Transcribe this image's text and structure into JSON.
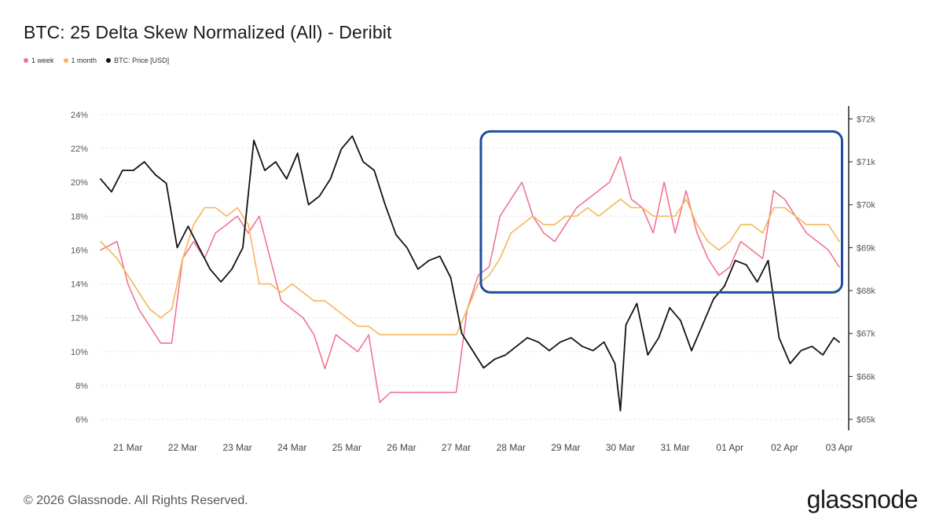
{
  "title": "BTC: 25 Delta Skew Normalized (All) - Deribit",
  "legend": [
    {
      "label": "1 week",
      "color": "#f0758f"
    },
    {
      "label": "1 month",
      "color": "#f5b65a"
    },
    {
      "label": "BTC: Price [USD]",
      "color": "#111111"
    }
  ],
  "footer": "© 2026 Glassnode. All Rights Reserved.",
  "brand": "glassnode",
  "highlight_color": "#1f4e9a",
  "chart_data": {
    "type": "line",
    "x_ticks": [
      "21 Mar",
      "22 Mar",
      "23 Mar",
      "24 Mar",
      "25 Mar",
      "26 Mar",
      "27 Mar",
      "28 Mar",
      "29 Mar",
      "30 Mar",
      "31 Mar",
      "01 Apr",
      "02 Apr",
      "03 Apr"
    ],
    "y_left_ticks": [
      "6%",
      "8%",
      "10%",
      "12%",
      "14%",
      "16%",
      "18%",
      "20%",
      "22%",
      "24%"
    ],
    "y_left_range": [
      5.5,
      24.5
    ],
    "y_right_ticks": [
      "$65k",
      "$66k",
      "$67k",
      "$68k",
      "$69k",
      "$70k",
      "$71k",
      "$72k"
    ],
    "y_right_range": [
      64.8,
      72.3
    ],
    "x_range": [
      20.5,
      34.1
    ],
    "grid": "horizontal dashed",
    "legend_position": "top-left",
    "annotation": "highlight box from 27 Mar to 03 Apr",
    "highlight_range": {
      "x": [
        27.45,
        34.05
      ],
      "y_left": [
        13.5,
        23.0
      ]
    },
    "series": [
      {
        "name": "1 week",
        "color": "#f0758f",
        "x": [
          20.5,
          20.8,
          21.0,
          21.2,
          21.4,
          21.6,
          21.8,
          22.0,
          22.2,
          22.4,
          22.6,
          22.8,
          23.0,
          23.2,
          23.4,
          23.6,
          23.8,
          24.0,
          24.2,
          24.4,
          24.6,
          24.8,
          25.0,
          25.2,
          25.4,
          25.6,
          25.8,
          26.0,
          26.2,
          26.4,
          26.6,
          26.8,
          27.0,
          27.2,
          27.4,
          27.6,
          27.8,
          28.0,
          28.2,
          28.4,
          28.6,
          28.8,
          29.0,
          29.2,
          29.4,
          29.6,
          29.8,
          30.0,
          30.2,
          30.4,
          30.6,
          30.8,
          31.0,
          31.2,
          31.4,
          31.6,
          31.8,
          32.0,
          32.2,
          32.4,
          32.6,
          32.8,
          33.0,
          33.2,
          33.4,
          33.6,
          33.8,
          34.0
        ],
        "values": [
          16.0,
          16.5,
          14.0,
          12.5,
          11.5,
          10.5,
          10.5,
          15.5,
          16.5,
          15.5,
          17.0,
          17.5,
          18.0,
          17.0,
          18.0,
          15.5,
          13.0,
          12.5,
          12.0,
          11.0,
          9.0,
          11.0,
          10.5,
          10.0,
          11.0,
          7.0,
          7.6,
          7.6,
          7.6,
          7.6,
          7.6,
          7.6,
          7.6,
          12.5,
          14.5,
          15.0,
          18.0,
          19.0,
          20.0,
          18.0,
          17.0,
          16.5,
          17.5,
          18.5,
          19.0,
          19.5,
          20.0,
          21.5,
          19.0,
          18.5,
          17.0,
          20.0,
          17.0,
          19.5,
          17.0,
          15.5,
          14.5,
          15.0,
          16.5,
          16.0,
          15.5,
          19.5,
          19.0,
          18.0,
          17.0,
          16.5,
          16.0,
          15.0
        ]
      },
      {
        "name": "1 month",
        "color": "#f5b65a",
        "x": [
          20.5,
          20.8,
          21.0,
          21.2,
          21.4,
          21.6,
          21.8,
          22.0,
          22.2,
          22.4,
          22.6,
          22.8,
          23.0,
          23.2,
          23.4,
          23.6,
          23.8,
          24.0,
          24.2,
          24.4,
          24.6,
          24.8,
          25.0,
          25.2,
          25.4,
          25.6,
          25.8,
          26.0,
          26.2,
          26.4,
          26.6,
          26.8,
          27.0,
          27.2,
          27.4,
          27.6,
          27.8,
          28.0,
          28.2,
          28.4,
          28.6,
          28.8,
          29.0,
          29.2,
          29.4,
          29.6,
          29.8,
          30.0,
          30.2,
          30.4,
          30.6,
          30.8,
          31.0,
          31.2,
          31.4,
          31.6,
          31.8,
          32.0,
          32.2,
          32.4,
          32.6,
          32.8,
          33.0,
          33.2,
          33.4,
          33.6,
          33.8,
          34.0
        ],
        "values": [
          16.5,
          15.5,
          14.5,
          13.5,
          12.5,
          12.0,
          12.5,
          15.5,
          17.5,
          18.5,
          18.5,
          18.0,
          18.5,
          17.5,
          14.0,
          14.0,
          13.5,
          14.0,
          13.5,
          13.0,
          13.0,
          12.5,
          12.0,
          11.5,
          11.5,
          11.0,
          11.0,
          11.0,
          11.0,
          11.0,
          11.0,
          11.0,
          11.0,
          12.5,
          14.0,
          14.5,
          15.5,
          17.0,
          17.5,
          18.0,
          17.5,
          17.5,
          18.0,
          18.0,
          18.5,
          18.0,
          18.5,
          19.0,
          18.5,
          18.5,
          18.0,
          18.0,
          18.0,
          19.0,
          17.5,
          16.5,
          16.0,
          16.5,
          17.5,
          17.5,
          17.0,
          18.5,
          18.5,
          18.0,
          17.5,
          17.5,
          17.5,
          16.5
        ]
      },
      {
        "name": "BTC: Price [USD]",
        "color": "#111111",
        "axis": "right",
        "x": [
          20.5,
          20.7,
          20.9,
          21.1,
          21.3,
          21.5,
          21.7,
          21.9,
          22.1,
          22.3,
          22.5,
          22.7,
          22.9,
          23.1,
          23.3,
          23.5,
          23.7,
          23.9,
          24.1,
          24.3,
          24.5,
          24.7,
          24.9,
          25.1,
          25.3,
          25.5,
          25.7,
          25.9,
          26.1,
          26.3,
          26.5,
          26.7,
          26.9,
          27.1,
          27.3,
          27.5,
          27.7,
          27.9,
          28.1,
          28.3,
          28.5,
          28.7,
          28.9,
          29.1,
          29.3,
          29.5,
          29.7,
          29.9,
          30.0,
          30.1,
          30.3,
          30.5,
          30.7,
          30.9,
          31.1,
          31.3,
          31.5,
          31.7,
          31.9,
          32.1,
          32.3,
          32.5,
          32.7,
          32.9,
          33.1,
          33.3,
          33.5,
          33.7,
          33.9,
          34.0
        ],
        "values": [
          70.6,
          70.3,
          70.8,
          70.8,
          71.0,
          70.7,
          70.5,
          69.0,
          69.5,
          69.0,
          68.5,
          68.2,
          68.5,
          69.0,
          71.5,
          70.8,
          71.0,
          70.6,
          71.2,
          70.0,
          70.2,
          70.6,
          71.3,
          71.6,
          71.0,
          70.8,
          70.0,
          69.3,
          69.0,
          68.5,
          68.7,
          68.8,
          68.3,
          67.0,
          66.6,
          66.2,
          66.4,
          66.5,
          66.7,
          66.9,
          66.8,
          66.6,
          66.8,
          66.9,
          66.7,
          66.6,
          66.8,
          66.3,
          65.2,
          67.2,
          67.7,
          66.5,
          66.9,
          67.6,
          67.3,
          66.6,
          67.2,
          67.8,
          68.1,
          68.7,
          68.6,
          68.2,
          68.7,
          66.9,
          66.3,
          66.6,
          66.7,
          66.5,
          66.9,
          66.8
        ]
      }
    ]
  }
}
